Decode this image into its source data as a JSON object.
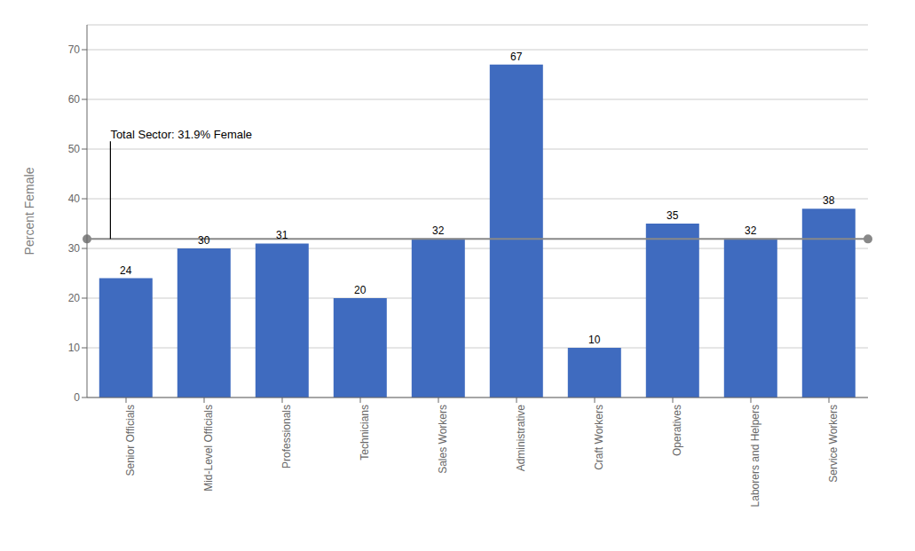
{
  "chart_data": {
    "type": "bar",
    "categories": [
      "Senior Officials",
      "Mid-Level Officials",
      "Professionals",
      "Technicians",
      "Sales Workers",
      "Administrative",
      "Craft Workers",
      "Operatives",
      "Laborers and Helpers",
      "Service Workers"
    ],
    "values": [
      24,
      30,
      31,
      20,
      32,
      67,
      10,
      35,
      32,
      38
    ],
    "color": "#3F6BBF",
    "ylabel": "Percent Female",
    "ylim": [
      0,
      75
    ],
    "yticks": [
      0,
      10,
      20,
      30,
      40,
      50,
      60,
      70
    ],
    "grid": true,
    "data_labels": true,
    "reference_line": {
      "value": 31.9,
      "label": "Total Sector: 31.9% Female",
      "color": "#888888"
    }
  }
}
